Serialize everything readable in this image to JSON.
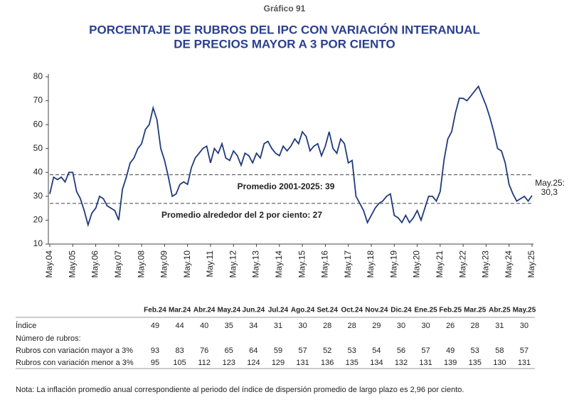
{
  "header": {
    "label": "Gráfico 91",
    "title_lines": [
      "PORCENTAJE DE RUBROS DEL IPC CON VARIACIÓN INTERANUAL",
      "DE PRECIOS MAYOR A 3 POR CIENTO"
    ]
  },
  "chart_data": {
    "type": "line",
    "color": "#1f3a7a",
    "categories": [
      "May.04",
      null,
      null,
      null,
      null,
      null,
      "May.05",
      null,
      null,
      null,
      null,
      null,
      "May.06",
      null,
      null,
      null,
      null,
      null,
      "May.07",
      null,
      null,
      null,
      null,
      null,
      "May.08",
      null,
      null,
      null,
      null,
      null,
      "May.09",
      null,
      null,
      null,
      null,
      null,
      "May.10",
      null,
      null,
      null,
      null,
      null,
      "May.11",
      null,
      null,
      null,
      null,
      null,
      "May.12",
      null,
      null,
      null,
      null,
      null,
      "May.13",
      null,
      null,
      null,
      null,
      null,
      "May.14",
      null,
      null,
      null,
      null,
      null,
      "May.15",
      null,
      null,
      null,
      null,
      null,
      "May.16",
      null,
      null,
      null,
      null,
      null,
      "May.17",
      null,
      null,
      null,
      null,
      null,
      "May.18",
      null,
      null,
      null,
      null,
      null,
      "May.19",
      null,
      null,
      null,
      null,
      null,
      "May.20",
      null,
      null,
      null,
      null,
      null,
      "May.21",
      null,
      null,
      null,
      null,
      null,
      "May.22",
      null,
      null,
      null,
      null,
      null,
      "May.23",
      null,
      null,
      null,
      null,
      null,
      "May.24",
      null,
      null,
      null,
      null,
      null,
      "May.25"
    ],
    "values": [
      31,
      38,
      37,
      38,
      36,
      40,
      40,
      32,
      29,
      24,
      18,
      23,
      25,
      30,
      29,
      26,
      25,
      24,
      20,
      33,
      38,
      44,
      46,
      50,
      52,
      58,
      60,
      67,
      62,
      50,
      45,
      38,
      30,
      31,
      35,
      36,
      35,
      42,
      46,
      48,
      50,
      51,
      44,
      50,
      48,
      52,
      46,
      45,
      49,
      47,
      43,
      48,
      47,
      44,
      48,
      46,
      52,
      53,
      50,
      48,
      47,
      51,
      49,
      51,
      54,
      52,
      57,
      55,
      49,
      51,
      52,
      47,
      51,
      57,
      50,
      48,
      54,
      52,
      44,
      45,
      30,
      27,
      24,
      19,
      22,
      25,
      27,
      28,
      30,
      31,
      22,
      21,
      19,
      22,
      19,
      21,
      24,
      20,
      25,
      30,
      30,
      28,
      32,
      45,
      54,
      57,
      65,
      71,
      71,
      70,
      72,
      74,
      76,
      72,
      68,
      63,
      57,
      50,
      49,
      44,
      35,
      31,
      28,
      29,
      30,
      28,
      30.3
    ],
    "ylim": [
      10,
      80
    ],
    "yticks": [
      10,
      20,
      30,
      40,
      50,
      60,
      70,
      80
    ],
    "reference_lines": [
      {
        "label": "Promedio 2001-2025: 39",
        "value": 39
      },
      {
        "label": "Promedio alrededor del 2 por ciento: 27",
        "value": 27
      }
    ],
    "end_label": {
      "prefix": "May.25:",
      "text": "30,3"
    }
  },
  "table": {
    "columns": [
      "Feb.24",
      "Mar.24",
      "Abr.24",
      "May.24",
      "Jun.24",
      "Jul.24",
      "Ago.24",
      "Set.24",
      "Oct.24",
      "Nov.24",
      "Dic.24",
      "Ene.25",
      "Feb.25",
      "Mar.25",
      "Abr.25",
      "May.25"
    ],
    "rows": [
      {
        "label": "Índice",
        "values": [
          49,
          44,
          40,
          35,
          34,
          31,
          30,
          28,
          28,
          29,
          30,
          30,
          26,
          28,
          31,
          30
        ]
      },
      {
        "label": "Número de rubros:"
      },
      {
        "label": "Rubros con variación mayor a 3%",
        "values": [
          93,
          83,
          76,
          65,
          64,
          59,
          57,
          52,
          53,
          54,
          56,
          57,
          49,
          53,
          58,
          57
        ]
      },
      {
        "label": "Rubros con variación menor a 3%",
        "values": [
          95,
          105,
          112,
          123,
          124,
          129,
          131,
          136,
          135,
          134,
          132,
          131,
          139,
          135,
          130,
          131
        ]
      }
    ]
  },
  "note": "Nota: La inflación promedio anual correspondiente al periodo del índice de dispersión promedio de largo plazo es 2,96 por ciento."
}
